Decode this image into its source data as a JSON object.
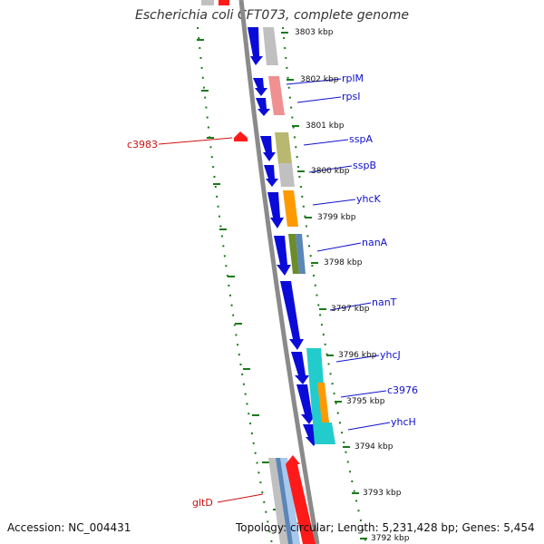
{
  "title": "Escherichia coli CFT073, complete genome",
  "footer": {
    "accession": "Accession: NC_004431",
    "topology": "Topology: circular; Length: 5,231,428 bp; Genes: 5,454"
  },
  "colors": {
    "backbone": "#8a8a8a",
    "forward_gene": "#0b0bd9",
    "reverse_gene": "#ff1a1a",
    "tick": "#1a7a1a",
    "gene_label": "#1010cc",
    "reverse_label": "#cc1010",
    "kbp_label": "#111111"
  },
  "kbp_labels": [
    "3803 kbp",
    "3802 kbp",
    "3801 kbp",
    "3800 kbp",
    "3799 kbp",
    "3798 kbp",
    "3797 kbp",
    "3796 kbp",
    "3795 kbp",
    "3794 kbp",
    "3793 kbp",
    "3792 kbp"
  ],
  "forward_gene_labels": [
    "rplM",
    "rpsI",
    "sspA",
    "sspB",
    "yhcK",
    "nanA",
    "nanT",
    "yhcJ",
    "c3976",
    "yhcH"
  ],
  "reverse_gene_labels": [
    "c3983",
    "gltD"
  ]
}
